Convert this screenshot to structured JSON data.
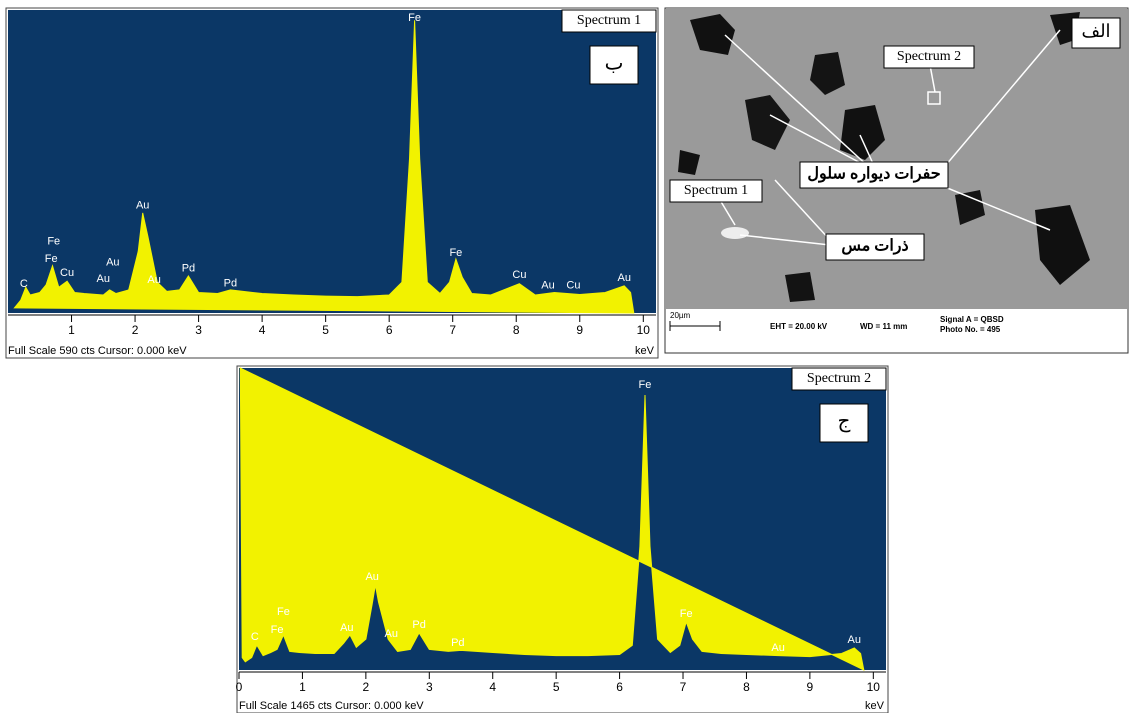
{
  "chart_data": [
    {
      "type": "area",
      "title": "Spectrum 1",
      "panel": "ب",
      "footer": "Full Scale 590 cts  Cursor: 0.000 keV",
      "x_label": "keV",
      "xlim": [
        0,
        10.2
      ],
      "ylim": [
        0,
        590
      ],
      "xticks": [
        1,
        2,
        3,
        4,
        5,
        6,
        7,
        8,
        9,
        10
      ],
      "x": [
        0.1,
        0.2,
        0.28,
        0.35,
        0.5,
        0.6,
        0.7,
        0.8,
        0.93,
        1.05,
        1.2,
        1.5,
        1.6,
        1.7,
        1.9,
        2.05,
        2.12,
        2.2,
        2.35,
        2.5,
        2.7,
        2.84,
        3.0,
        3.3,
        3.5,
        4.0,
        4.5,
        5.0,
        5.5,
        6.0,
        6.2,
        6.32,
        6.4,
        6.48,
        6.6,
        6.8,
        6.95,
        7.05,
        7.15,
        7.3,
        7.6,
        8.05,
        8.3,
        8.6,
        9.0,
        9.4,
        9.7,
        9.8,
        9.85
      ],
      "series": [
        {
          "color": "#f2f200",
          "values": [
            10,
            25,
            50,
            35,
            40,
            55,
            92,
            50,
            62,
            40,
            38,
            35,
            45,
            38,
            45,
            120,
            195,
            150,
            60,
            42,
            45,
            72,
            40,
            38,
            45,
            38,
            35,
            33,
            32,
            35,
            60,
            300,
            570,
            300,
            60,
            38,
            60,
            105,
            70,
            38,
            35,
            57,
            35,
            40,
            36,
            40,
            53,
            40,
            0
          ]
        }
      ],
      "peak_labels": [
        {
          "text": "C",
          "x": 0.25,
          "y": 56
        },
        {
          "text": "Fe",
          "x": 0.68,
          "y": 105
        },
        {
          "text": "Fe",
          "x": 0.72,
          "y": 139
        },
        {
          "text": "Cu",
          "x": 0.93,
          "y": 78
        },
        {
          "text": "Au",
          "x": 1.5,
          "y": 66
        },
        {
          "text": "Au",
          "x": 1.65,
          "y": 98
        },
        {
          "text": "Au",
          "x": 2.12,
          "y": 209
        },
        {
          "text": "Au",
          "x": 2.3,
          "y": 64
        },
        {
          "text": "Pd",
          "x": 2.84,
          "y": 86
        },
        {
          "text": "Pd",
          "x": 3.5,
          "y": 57
        },
        {
          "text": "Fe",
          "x": 6.4,
          "y": 574
        },
        {
          "text": "Fe",
          "x": 7.05,
          "y": 117
        },
        {
          "text": "Cu",
          "x": 8.05,
          "y": 74
        },
        {
          "text": "Au",
          "x": 8.5,
          "y": 53
        },
        {
          "text": "Cu",
          "x": 8.9,
          "y": 53
        },
        {
          "text": "Au",
          "x": 9.7,
          "y": 68
        }
      ]
    },
    {
      "type": "area",
      "title": "Spectrum 2",
      "panel": "ج",
      "footer": "Full Scale 1465 cts  Cursor: 0.000 keV",
      "x_label": "keV",
      "xlim": [
        0,
        10.2
      ],
      "ylim": [
        0,
        1465
      ],
      "xticks": [
        0,
        1,
        2,
        3,
        4,
        5,
        6,
        7,
        8,
        9,
        10
      ],
      "x": [
        0.02,
        0.05,
        0.1,
        0.2,
        0.28,
        0.38,
        0.5,
        0.6,
        0.7,
        0.8,
        0.95,
        1.2,
        1.5,
        1.65,
        1.75,
        1.85,
        2.0,
        2.1,
        2.15,
        2.2,
        2.35,
        2.5,
        2.7,
        2.84,
        3.0,
        3.3,
        3.5,
        4.0,
        4.5,
        5.0,
        5.5,
        6.0,
        6.2,
        6.32,
        6.4,
        6.48,
        6.6,
        6.8,
        6.95,
        7.05,
        7.15,
        7.3,
        7.6,
        8.0,
        8.5,
        9.0,
        9.5,
        9.7,
        9.8,
        9.85
      ],
      "series": [
        {
          "color": "#f2f200",
          "values": [
            1465,
            60,
            40,
            60,
            121,
            70,
            85,
            100,
            170,
            90,
            85,
            80,
            80,
            130,
            170,
            110,
            150,
            320,
            412,
            330,
            150,
            90,
            100,
            180,
            100,
            90,
            95,
            85,
            75,
            70,
            70,
            75,
            120,
            600,
            1334,
            600,
            150,
            85,
            120,
            233,
            150,
            90,
            80,
            75,
            70,
            65,
            80,
            107,
            80,
            0
          ]
        }
      ],
      "peak_labels": [
        {
          "text": "C",
          "x": 0.25,
          "y": 160
        },
        {
          "text": "Fe",
          "x": 0.6,
          "y": 194
        },
        {
          "text": "Fe",
          "x": 0.7,
          "y": 281
        },
        {
          "text": "Au",
          "x": 1.7,
          "y": 204
        },
        {
          "text": "Au",
          "x": 2.1,
          "y": 451
        },
        {
          "text": "Au",
          "x": 2.4,
          "y": 175
        },
        {
          "text": "Pd",
          "x": 2.84,
          "y": 218
        },
        {
          "text": "Pd",
          "x": 3.45,
          "y": 131
        },
        {
          "text": "Fe",
          "x": 6.4,
          "y": 1383
        },
        {
          "text": "Fe",
          "x": 7.05,
          "y": 272
        },
        {
          "text": "Au",
          "x": 8.5,
          "y": 107
        },
        {
          "text": "Au",
          "x": 9.7,
          "y": 146
        }
      ]
    }
  ],
  "image": {
    "panel": "الف",
    "spectrum_2": "Spectrum 2",
    "spectrum_1": "Spectrum 1",
    "pits_label": "حفرات دیواره سلول",
    "copper_label": "ذرات مس",
    "scale_bar": "20µm",
    "eht": "EHT = 20.00 kV",
    "wd": "WD =  11 mm",
    "signal": "Signal A = QBSD",
    "photo": "Photo No. = 495"
  }
}
